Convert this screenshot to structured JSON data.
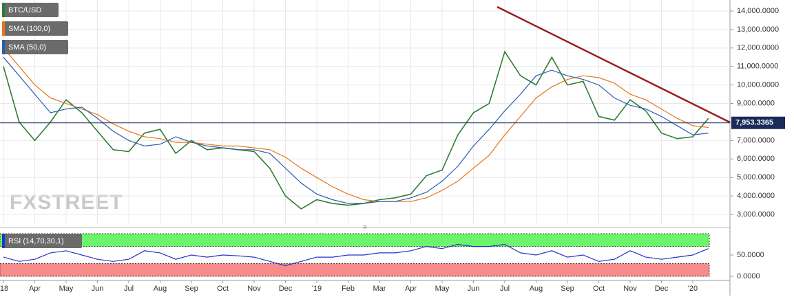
{
  "chart_data": [
    {
      "type": "line",
      "watermark": "FXSTREET",
      "ylim": [
        2480,
        14595
      ],
      "yticks": [
        {
          "value": 3000,
          "label": "3,000.0000"
        },
        {
          "value": 4000,
          "label": "4,000.0000"
        },
        {
          "value": 5000,
          "label": "5,000.0000"
        },
        {
          "value": 6000,
          "label": "6,000.0000"
        },
        {
          "value": 7000,
          "label": "7,000.0000"
        },
        {
          "value": 8000,
          "label": "8,000.0000"
        },
        {
          "value": 9000,
          "label": "9,000.0000"
        },
        {
          "value": 10000,
          "label": "10,000.0000"
        },
        {
          "value": 11000,
          "label": "11,000.0000"
        },
        {
          "value": 12000,
          "label": "12,000.0000"
        },
        {
          "value": 13000,
          "label": "13,000.0000"
        },
        {
          "value": 14000,
          "label": "14,000.0000"
        }
      ],
      "grid": true,
      "last_price": {
        "value": 7953.3365,
        "label": "7,953.3365"
      },
      "series": [
        {
          "name": "BTC/USD",
          "color": "#2e7d32",
          "values": [
            11000,
            8000,
            7000,
            8000,
            9200,
            8500,
            7500,
            6500,
            6400,
            7400,
            7600,
            6300,
            7000,
            6500,
            6600,
            6500,
            6400,
            5500,
            4000,
            3300,
            3800,
            3600,
            3500,
            3600,
            3800,
            3900,
            4100,
            5100,
            5400,
            7300,
            8500,
            9000,
            11800,
            10500,
            10000,
            11500,
            10000,
            10200,
            8300,
            8100,
            9200,
            8600,
            7400,
            7100,
            7200,
            8200
          ]
        },
        {
          "name": "SMA (100,0)",
          "color": "#e8751a",
          "values": [
            12000,
            11000,
            10000,
            9300,
            9000,
            8700,
            8400,
            7900,
            7500,
            7200,
            7100,
            6900,
            6900,
            6800,
            6700,
            6700,
            6600,
            6500,
            6100,
            5500,
            5000,
            4500,
            4100,
            3800,
            3700,
            3700,
            3700,
            3900,
            4300,
            4800,
            5500,
            6200,
            7300,
            8300,
            9300,
            9900,
            10300,
            10500,
            10400,
            10100,
            9500,
            9200,
            8700,
            8200,
            7800,
            7700
          ]
        },
        {
          "name": "SMA (50,0)",
          "color": "#2a5db0",
          "values": [
            11500,
            10500,
            9500,
            8500,
            8700,
            8800,
            8200,
            7500,
            7000,
            6700,
            6800,
            7200,
            6900,
            6700,
            6600,
            6500,
            6500,
            6300,
            5500,
            4700,
            4100,
            3800,
            3600,
            3600,
            3700,
            3700,
            3900,
            4200,
            4800,
            5600,
            6700,
            7600,
            8600,
            9500,
            10500,
            10800,
            10500,
            10300,
            10000,
            9300,
            8900,
            8700,
            8300,
            7800,
            7300,
            7400
          ]
        }
      ]
    },
    {
      "type": "line",
      "ylim": [
        -9.7,
        106.5
      ],
      "yticks": [
        {
          "value": 0,
          "label": "0.0000"
        },
        {
          "value": 50,
          "label": "50.0000"
        }
      ],
      "bands": [
        {
          "from": 70,
          "to": 100,
          "color": "#6cf56c"
        },
        {
          "from": 0,
          "to": 30,
          "color": "#f78a8a"
        }
      ],
      "categories": [
        "'18",
        null,
        "Apr",
        null,
        "May",
        null,
        "Jun",
        null,
        "Jul",
        null,
        "Aug",
        null,
        "Sep",
        null,
        "Oct",
        null,
        "Nov",
        null,
        "Dec",
        null,
        "'19",
        null,
        "Feb",
        null,
        "Mar",
        null,
        "Apr",
        null,
        "May",
        null,
        "Jun",
        null,
        "Jul",
        null,
        "Aug",
        null,
        "Sep",
        null,
        "Oct",
        null,
        "Nov",
        null,
        "Dec",
        null,
        "'20",
        null
      ],
      "series": [
        {
          "name": "RSI (14,70,30,1)",
          "color": "#2233cc",
          "values": [
            45,
            35,
            40,
            55,
            60,
            50,
            40,
            35,
            40,
            60,
            55,
            40,
            50,
            45,
            50,
            48,
            45,
            35,
            25,
            35,
            45,
            45,
            50,
            50,
            55,
            55,
            60,
            70,
            65,
            75,
            70,
            70,
            75,
            55,
            50,
            60,
            45,
            50,
            35,
            40,
            60,
            45,
            40,
            45,
            50,
            65
          ]
        }
      ]
    }
  ]
}
